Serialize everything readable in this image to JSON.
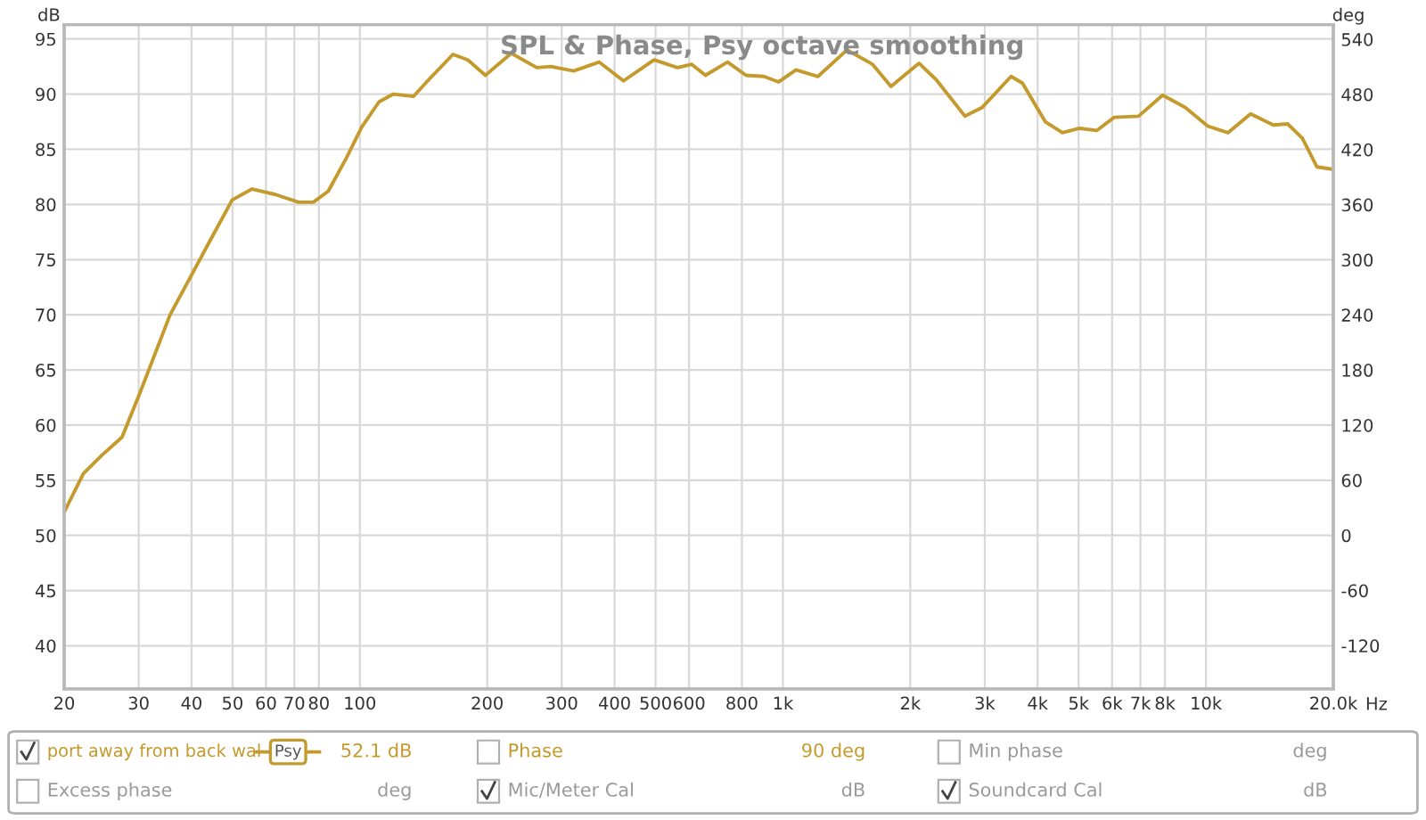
{
  "chart_data": {
    "type": "line",
    "title": "SPL & Phase, Psy octave smoothing",
    "xlabel": "Hz",
    "ylabel": "dB",
    "y2label": "deg",
    "log": "x",
    "grid": true,
    "legend": "bottom",
    "marker": "none",
    "line_style": "solid",
    "xlim": [
      20,
      20000
    ],
    "xticks": [
      20,
      30,
      40,
      50,
      60,
      70,
      80,
      100,
      200,
      300,
      400,
      500,
      600,
      800,
      {
        "value": 1000,
        "label": "1k"
      },
      {
        "value": 2000,
        "label": "2k"
      },
      {
        "value": 3000,
        "label": "3k"
      },
      {
        "value": 4000,
        "label": "4k"
      },
      {
        "value": 5000,
        "label": "5k"
      },
      {
        "value": 6000,
        "label": "6k"
      },
      {
        "value": 7000,
        "label": "7k"
      },
      {
        "value": 8000,
        "label": "8k"
      },
      {
        "value": 10000,
        "label": "10k"
      },
      {
        "value": 20000,
        "label": "20.0k"
      }
    ],
    "ylim": [
      36.1,
      96.3
    ],
    "yticks": [
      40,
      45,
      50,
      55,
      60,
      65,
      70,
      75,
      80,
      85,
      90,
      95
    ],
    "y2lim": [
      -167,
      556
    ],
    "y2ticks": [
      -120,
      -60,
      0,
      60,
      120,
      180,
      240,
      300,
      360,
      420,
      480,
      540
    ],
    "annotations": [
      "Psy",
      "52.1 dB",
      "Phase",
      "90 deg",
      "Min phase",
      "deg",
      "Excess phase",
      "deg",
      "Mic/Meter Cal",
      "dB",
      "Soundcard Cal",
      "dB"
    ],
    "series": [
      {
        "name": "port away from back wal",
        "color": "#c49a2c",
        "x": [
          20,
          22.2,
          24.6,
          27.4,
          30.2,
          35.6,
          40,
          44.8,
          49.9,
          55.6,
          63.2,
          71.6,
          77.6,
          84.2,
          92.9,
          101,
          111,
          120,
          134,
          143,
          166,
          180,
          198,
          228,
          262,
          283,
          320,
          368,
          420,
          496,
          563,
          609,
          656,
          740,
          818,
          902,
          977,
          1074,
          1210,
          1417,
          1629,
          1801,
          2097,
          2304,
          2694,
          2960,
          3462,
          3683,
          4170,
          4579,
          5024,
          5517,
          6068,
          6930,
          7900,
          8930,
          10100,
          11270,
          12750,
          14430,
          15600,
          16900,
          18300,
          19800
        ],
        "values": [
          52.1,
          55.6,
          57.3,
          58.9,
          62.9,
          70.0,
          73.6,
          77.1,
          80.4,
          81.4,
          80.9,
          80.2,
          80.2,
          81.2,
          84.2,
          87.0,
          89.3,
          90.0,
          89.8,
          91.0,
          93.6,
          93.1,
          91.7,
          93.7,
          92.4,
          92.5,
          92.1,
          92.9,
          91.2,
          93.1,
          92.4,
          92.7,
          91.7,
          92.9,
          91.7,
          91.6,
          91.1,
          92.2,
          91.6,
          94.0,
          92.7,
          90.7,
          92.8,
          91.3,
          88.0,
          88.8,
          91.6,
          91.0,
          87.5,
          86.5,
          86.9,
          86.7,
          87.9,
          88.0,
          89.9,
          88.8,
          87.1,
          86.5,
          88.2,
          87.2,
          87.3,
          86.0,
          83.4,
          83.2
        ]
      }
    ]
  }
}
